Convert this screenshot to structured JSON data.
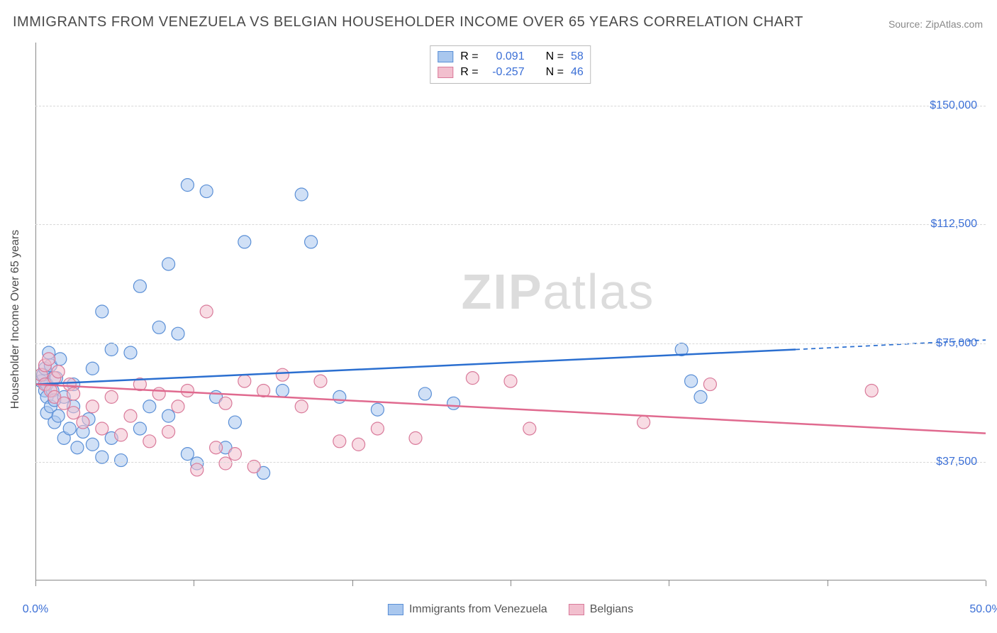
{
  "title": "IMMIGRANTS FROM VENEZUELA VS BELGIAN HOUSEHOLDER INCOME OVER 65 YEARS CORRELATION CHART",
  "source_label": "Source:",
  "source_value": "ZipAtlas.com",
  "ylabel": "Householder Income Over 65 years",
  "watermark_bold": "ZIP",
  "watermark_rest": "atlas",
  "chart": {
    "type": "scatter",
    "background_color": "#ffffff",
    "grid_color": "#d8d8d8",
    "axis_color": "#888888",
    "text_color": "#4a4a4a",
    "value_color": "#3b6fd6",
    "xlim": [
      0,
      50
    ],
    "ylim": [
      0,
      170000
    ],
    "xticks": [
      {
        "pos": 0,
        "label": "0.0%"
      },
      {
        "pos": 8.33,
        "label": ""
      },
      {
        "pos": 16.67,
        "label": ""
      },
      {
        "pos": 25,
        "label": ""
      },
      {
        "pos": 33.33,
        "label": ""
      },
      {
        "pos": 41.67,
        "label": ""
      },
      {
        "pos": 50,
        "label": "50.0%"
      }
    ],
    "yticks": [
      {
        "pos": 37500,
        "label": "$37,500"
      },
      {
        "pos": 75000,
        "label": "$75,000"
      },
      {
        "pos": 112500,
        "label": "$112,500"
      },
      {
        "pos": 150000,
        "label": "$150,000"
      }
    ],
    "marker_radius": 9,
    "marker_opacity": 0.55,
    "marker_stroke_width": 1.2,
    "line_width": 2.5
  },
  "series": [
    {
      "name": "Immigrants from Venezuela",
      "fill_color": "#a9c7ee",
      "stroke_color": "#5a8fd6",
      "line_color": "#2b6fd0",
      "R_label": "R =",
      "R": "0.091",
      "N_label": "N =",
      "N": "58",
      "trend": {
        "x1": 0,
        "y1": 62000,
        "x2": 40,
        "y2": 73000,
        "x_extend": 50,
        "y_extend": 76000
      },
      "points": [
        [
          0.3,
          63000
        ],
        [
          0.4,
          65000
        ],
        [
          0.5,
          60000
        ],
        [
          0.5,
          67000
        ],
        [
          0.6,
          53000
        ],
        [
          0.6,
          58000
        ],
        [
          0.6,
          62000
        ],
        [
          0.7,
          72000
        ],
        [
          0.8,
          55000
        ],
        [
          0.8,
          68000
        ],
        [
          0.9,
          60000
        ],
        [
          1.0,
          50000
        ],
        [
          1.0,
          57000
        ],
        [
          1.1,
          64000
        ],
        [
          1.2,
          52000
        ],
        [
          1.3,
          70000
        ],
        [
          1.5,
          45000
        ],
        [
          1.5,
          58000
        ],
        [
          1.8,
          48000
        ],
        [
          2.0,
          55000
        ],
        [
          2.0,
          62000
        ],
        [
          2.2,
          42000
        ],
        [
          2.5,
          47000
        ],
        [
          2.8,
          51000
        ],
        [
          3.0,
          43000
        ],
        [
          3.0,
          67000
        ],
        [
          3.5,
          39000
        ],
        [
          3.5,
          85000
        ],
        [
          4.0,
          45000
        ],
        [
          4.0,
          73000
        ],
        [
          4.5,
          38000
        ],
        [
          5.0,
          72000
        ],
        [
          5.5,
          48000
        ],
        [
          5.5,
          93000
        ],
        [
          6.0,
          55000
        ],
        [
          6.5,
          80000
        ],
        [
          7.0,
          52000
        ],
        [
          7.0,
          100000
        ],
        [
          7.5,
          78000
        ],
        [
          8.0,
          40000
        ],
        [
          8.0,
          125000
        ],
        [
          8.5,
          37000
        ],
        [
          9.0,
          123000
        ],
        [
          9.5,
          58000
        ],
        [
          10.0,
          42000
        ],
        [
          10.5,
          50000
        ],
        [
          11.0,
          107000
        ],
        [
          12.0,
          34000
        ],
        [
          13.0,
          60000
        ],
        [
          14.0,
          122000
        ],
        [
          14.5,
          107000
        ],
        [
          16.0,
          58000
        ],
        [
          18.0,
          54000
        ],
        [
          20.5,
          59000
        ],
        [
          22.0,
          56000
        ],
        [
          34.0,
          73000
        ],
        [
          34.5,
          63000
        ],
        [
          35.0,
          58000
        ]
      ]
    },
    {
      "name": "Belgians",
      "fill_color": "#f2bfce",
      "stroke_color": "#d97a9a",
      "line_color": "#e06a8f",
      "R_label": "R =",
      "R": "-0.257",
      "N_label": "N =",
      "N": "46",
      "trend": {
        "x1": 0,
        "y1": 62000,
        "x2": 50,
        "y2": 46500
      },
      "points": [
        [
          0.3,
          65000
        ],
        [
          0.5,
          68000
        ],
        [
          0.5,
          62000
        ],
        [
          0.7,
          70000
        ],
        [
          0.8,
          60000
        ],
        [
          1.0,
          64000
        ],
        [
          1.0,
          58000
        ],
        [
          1.2,
          66000
        ],
        [
          1.5,
          56000
        ],
        [
          1.8,
          62000
        ],
        [
          2.0,
          53000
        ],
        [
          2.0,
          59000
        ],
        [
          2.5,
          50000
        ],
        [
          3.0,
          55000
        ],
        [
          3.5,
          48000
        ],
        [
          4.0,
          58000
        ],
        [
          4.5,
          46000
        ],
        [
          5.0,
          52000
        ],
        [
          5.5,
          62000
        ],
        [
          6.0,
          44000
        ],
        [
          6.5,
          59000
        ],
        [
          7.0,
          47000
        ],
        [
          7.5,
          55000
        ],
        [
          8.0,
          60000
        ],
        [
          8.5,
          35000
        ],
        [
          9.0,
          85000
        ],
        [
          9.5,
          42000
        ],
        [
          10.0,
          56000
        ],
        [
          10.0,
          37000
        ],
        [
          10.5,
          40000
        ],
        [
          11.0,
          63000
        ],
        [
          11.5,
          36000
        ],
        [
          12.0,
          60000
        ],
        [
          13.0,
          65000
        ],
        [
          14.0,
          55000
        ],
        [
          15.0,
          63000
        ],
        [
          16.0,
          44000
        ],
        [
          17.0,
          43000
        ],
        [
          18.0,
          48000
        ],
        [
          20.0,
          45000
        ],
        [
          23.0,
          64000
        ],
        [
          25.0,
          63000
        ],
        [
          26.0,
          48000
        ],
        [
          32.0,
          50000
        ],
        [
          35.5,
          62000
        ],
        [
          44.0,
          60000
        ]
      ]
    }
  ]
}
